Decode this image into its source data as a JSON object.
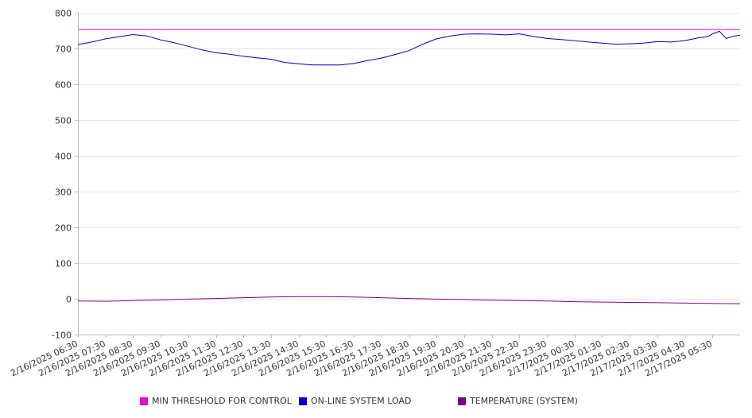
{
  "chart_data": {
    "type": "line",
    "title": "",
    "xlabel": "",
    "ylabel": "",
    "ylim": [
      -100,
      800
    ],
    "yticks": [
      800,
      700,
      600,
      500,
      400,
      300,
      200,
      100,
      0,
      -100
    ],
    "x_tick_labels": [
      "2/16/2025 06:30",
      "2/16/2025 07:30",
      "2/16/2025 08:30",
      "2/16/2025 09:30",
      "2/16/2025 10:30",
      "2/16/2025 11:30",
      "2/16/2025 12:30",
      "2/16/2025 13:30",
      "2/16/2025 14:30",
      "2/16/2025 15:30",
      "2/16/2025 16:30",
      "2/16/2025 17:30",
      "2/16/2025 18:30",
      "2/16/2025 19:30",
      "2/16/2025 20:30",
      "2/16/2025 21:30",
      "2/16/2025 22:30",
      "2/16/2025 23:30",
      "2/17/2025 00:30",
      "2/17/2025 01:30",
      "2/17/2025 02:30",
      "2/17/2025 03:30",
      "2/17/2025 04:30",
      "2/17/2025 05:30"
    ],
    "grid": true,
    "legend_position": "bottom",
    "series": [
      {
        "name": "MIN THRESHOLD FOR CONTROL",
        "color": "#e000e0",
        "x": [
          "2/16/2025 06:30",
          "2/17/2025 06:30"
        ],
        "values": [
          753,
          753
        ]
      },
      {
        "name": "ON-LINE SYSTEM LOAD",
        "color": "#0000c0",
        "x": [
          "2/16/2025 06:30",
          "2/16/2025 07:00",
          "2/16/2025 07:30",
          "2/16/2025 08:00",
          "2/16/2025 08:30",
          "2/16/2025 09:00",
          "2/16/2025 09:30",
          "2/16/2025 10:00",
          "2/16/2025 10:30",
          "2/16/2025 11:00",
          "2/16/2025 11:30",
          "2/16/2025 12:00",
          "2/16/2025 12:30",
          "2/16/2025 13:00",
          "2/16/2025 13:30",
          "2/16/2025 14:00",
          "2/16/2025 14:30",
          "2/16/2025 15:00",
          "2/16/2025 15:30",
          "2/16/2025 16:00",
          "2/16/2025 16:30",
          "2/16/2025 17:00",
          "2/16/2025 17:30",
          "2/16/2025 18:00",
          "2/16/2025 18:30",
          "2/16/2025 19:00",
          "2/16/2025 19:30",
          "2/16/2025 20:00",
          "2/16/2025 20:30",
          "2/16/2025 21:00",
          "2/16/2025 21:30",
          "2/16/2025 22:00",
          "2/16/2025 22:30",
          "2/16/2025 23:00",
          "2/16/2025 23:30",
          "2/17/2025 00:00",
          "2/17/2025 00:30",
          "2/17/2025 01:00",
          "2/17/2025 01:30",
          "2/17/2025 02:00",
          "2/17/2025 02:30",
          "2/17/2025 03:00",
          "2/17/2025 03:30",
          "2/17/2025 04:00",
          "2/17/2025 04:30",
          "2/17/2025 05:00",
          "2/17/2025 05:20",
          "2/17/2025 05:30",
          "2/17/2025 05:45",
          "2/17/2025 06:00",
          "2/17/2025 06:15",
          "2/17/2025 06:30"
        ],
        "values": [
          711,
          718,
          727,
          733,
          739,
          735,
          724,
          716,
          706,
          696,
          688,
          684,
          678,
          674,
          670,
          661,
          657,
          654,
          654,
          654,
          658,
          666,
          673,
          683,
          694,
          712,
          727,
          735,
          740,
          741,
          740,
          738,
          741,
          734,
          728,
          725,
          722,
          718,
          715,
          712,
          713,
          715,
          719,
          718,
          722,
          730,
          733,
          741,
          748,
          728,
          734,
          737
        ]
      },
      {
        "name": "TEMPERATURE (SYSTEM)",
        "color": "#800080",
        "x": [
          "2/16/2025 06:30",
          "2/16/2025 07:30",
          "2/16/2025 08:30",
          "2/16/2025 09:30",
          "2/16/2025 10:30",
          "2/16/2025 11:30",
          "2/16/2025 12:30",
          "2/16/2025 13:30",
          "2/16/2025 14:30",
          "2/16/2025 15:30",
          "2/16/2025 16:30",
          "2/16/2025 17:30",
          "2/16/2025 18:30",
          "2/16/2025 19:30",
          "2/16/2025 20:30",
          "2/16/2025 21:30",
          "2/16/2025 22:30",
          "2/16/2025 23:30",
          "2/17/2025 00:30",
          "2/17/2025 01:30",
          "2/17/2025 02:30",
          "2/17/2025 03:30",
          "2/17/2025 04:30",
          "2/17/2025 05:30",
          "2/17/2025 06:30"
        ],
        "values": [
          -6,
          -7,
          -5,
          -3,
          -1,
          1,
          3,
          5,
          6,
          6,
          5,
          3,
          1,
          -1,
          -2,
          -4,
          -5,
          -6,
          -8,
          -9,
          -10,
          -11,
          -12,
          -13,
          -14
        ]
      }
    ]
  }
}
